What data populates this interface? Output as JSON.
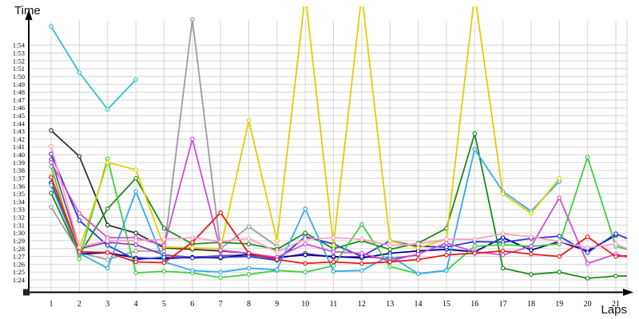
{
  "chart_data": {
    "type": "line",
    "ylabel": "Time",
    "xlabel": "Laps",
    "grid": true,
    "legend": "none",
    "x": [
      1,
      2,
      3,
      4,
      5,
      6,
      7,
      8,
      9,
      10,
      11,
      12,
      13,
      14,
      15,
      16,
      17,
      18,
      19,
      20,
      21
    ],
    "y_axis_note": "lap time m:ss, labeled 1:24 (bottom) to 1:54 (top), one gridline per second; spikes above 1:54 run off the top of the plot",
    "y_ticks": [
      {
        "v": 84,
        "label": "1:24"
      },
      {
        "v": 85,
        "label": "1:25"
      },
      {
        "v": 86,
        "label": "1:26"
      },
      {
        "v": 87,
        "label": "1:27"
      },
      {
        "v": 88,
        "label": "1:28"
      },
      {
        "v": 89,
        "label": "1:29"
      },
      {
        "v": 90,
        "label": "1:30"
      },
      {
        "v": 91,
        "label": "1:31"
      },
      {
        "v": 92,
        "label": "1:32"
      },
      {
        "v": 93,
        "label": "1:33"
      },
      {
        "v": 94,
        "label": "1:34"
      },
      {
        "v": 95,
        "label": "1:35"
      },
      {
        "v": 96,
        "label": "1:36"
      },
      {
        "v": 97,
        "label": "1:37"
      },
      {
        "v": 98,
        "label": "1:38"
      },
      {
        "v": 99,
        "label": "1:39"
      },
      {
        "v": 100,
        "label": "1:40"
      },
      {
        "v": 101,
        "label": "1:41"
      },
      {
        "v": 102,
        "label": "1:42"
      },
      {
        "v": 103,
        "label": "1:43"
      },
      {
        "v": 104,
        "label": "1:44"
      },
      {
        "v": 105,
        "label": "1:45"
      },
      {
        "v": 106,
        "label": "1:46"
      },
      {
        "v": 107,
        "label": "1:47"
      },
      {
        "v": 108,
        "label": "1:48"
      },
      {
        "v": 109,
        "label": "1:49"
      },
      {
        "v": 110,
        "label": "1:50"
      },
      {
        "v": 111,
        "label": "1:51"
      },
      {
        "v": 112,
        "label": "1:52"
      },
      {
        "v": 113,
        "label": "1:53"
      },
      {
        "v": 114,
        "label": "1:54"
      }
    ],
    "series": [
      {
        "id": "gray",
        "color": "#9c9c9c",
        "values": [
          93.3,
          87.5,
          86.6,
          87.7,
          87.7,
          117.3,
          88.0,
          90.8,
          88.3,
          null,
          null,
          null,
          null,
          null,
          null,
          null,
          null,
          null,
          null,
          null,
          null
        ],
        "edge": null
      },
      {
        "id": "black",
        "color": "#333333",
        "values": [
          103.1,
          99.8,
          91.0,
          90.0,
          88.1,
          87.9,
          87.7,
          87.4,
          null,
          null,
          null,
          null,
          null,
          null,
          null,
          null,
          null,
          null,
          null,
          null,
          null
        ],
        "edge": null
      },
      {
        "id": "cyan",
        "color": "#2fc4c4",
        "values": [
          116.4,
          110.5,
          105.8,
          109.6,
          null,
          null,
          null,
          null,
          null,
          null,
          null,
          null,
          null,
          null,
          null,
          null,
          null,
          null,
          null,
          null,
          null
        ],
        "edge": null
      },
      {
        "id": "purple",
        "color": "#8040a8",
        "values": [
          99.4,
          88.0,
          88.8,
          88.5,
          87.2,
          86.9,
          87.1,
          87.2,
          86.7,
          87.4,
          86.9,
          87.0,
          86.7,
          87.2,
          null,
          null,
          null,
          null,
          null,
          null,
          null
        ],
        "edge": null
      },
      {
        "id": "navy",
        "color": "#000090",
        "values": [
          96.4,
          87.3,
          87.5,
          86.8,
          86.7,
          86.9,
          86.8,
          87.3,
          86.9,
          87.2,
          87.0,
          86.8,
          87.4,
          87.7,
          87.9,
          87.6,
          89.4,
          87.8,
          88.9,
          87.7,
          89.7
        ],
        "edge": null
      },
      {
        "id": "royalblue",
        "color": "#2438d8",
        "values": [
          100.1,
          91.6,
          88.4,
          86.6,
          86.9,
          86.8,
          86.9,
          87.0,
          86.5,
          89.5,
          88.6,
          87.0,
          89.0,
          88.3,
          88.2,
          88.9,
          88.8,
          89.3,
          89.6,
          87.5,
          89.9
        ],
        "edge": 89.3
      },
      {
        "id": "darkgreen",
        "color": "#1a8a1a",
        "values": [
          95.1,
          87.2,
          93.1,
          97.0,
          90.6,
          88.6,
          88.8,
          88.6,
          87.9,
          90.0,
          88.0,
          89.0,
          87.9,
          88.7,
          90.6,
          102.7,
          85.5,
          84.7,
          85.0,
          84.2,
          84.5
        ],
        "edge": 84.5
      },
      {
        "id": "lime",
        "color": "#3fcf3f",
        "values": [
          98.5,
          86.7,
          99.5,
          84.9,
          85.1,
          84.9,
          84.3,
          84.7,
          85.2,
          85.0,
          85.8,
          91.1,
          85.7,
          84.8,
          85.2,
          88.3,
          88.5,
          88.3,
          88.6,
          99.7,
          88.3
        ],
        "edge": 87.9
      },
      {
        "id": "skyblue",
        "color": "#33aaee",
        "values": [
          96.1,
          87.4,
          85.5,
          95.3,
          86.3,
          85.2,
          85.0,
          85.5,
          85.3,
          93.1,
          85.1,
          85.2,
          87.1,
          84.8,
          85.2,
          100.7,
          95.3,
          92.8,
          96.6,
          null,
          null
        ],
        "edge": null
      },
      {
        "id": "yellow",
        "color": "#ddd000",
        "values": [
          97.3,
          87.9,
          99.0,
          98.1,
          88.2,
          88.1,
          88.0,
          104.4,
          89.0,
          120.5,
          88.4,
          120.5,
          89.0,
          88.1,
          89.2,
          120.5,
          95.0,
          92.5,
          97.0,
          null,
          null
        ],
        "edge": null
      },
      {
        "id": "magenta",
        "color": "#cf4fcf",
        "values": [
          99.0,
          92.5,
          89.4,
          89.4,
          88.4,
          102.0,
          87.8,
          87.4,
          86.9,
          88.6,
          87.6,
          87.4,
          86.4,
          87.3,
          88.7,
          87.6,
          87.2,
          88.3,
          94.5,
          86.1,
          87.3
        ],
        "edge": 86.9
      },
      {
        "id": "red",
        "color": "#e81818",
        "values": [
          97.1,
          87.6,
          87.5,
          86.3,
          86.2,
          88.8,
          92.6,
          87.4,
          86.6,
          86.1,
          86.3,
          86.1,
          86.3,
          86.6,
          87.2,
          87.4,
          87.7,
          87.3,
          87.0,
          89.5,
          87.0
        ],
        "edge": 87.1
      },
      {
        "id": "pink",
        "color": "#ff9dc0",
        "values": [
          101.1,
          88.2,
          89.0,
          89.0,
          89.2,
          89.4,
          88.9,
          89.3,
          87.6,
          89.2,
          89.4,
          89.2,
          88.4,
          88.6,
          89.2,
          89.2,
          89.9,
          89.5,
          88.9,
          88.1,
          88.6
        ],
        "edge": 88.0
      }
    ]
  }
}
